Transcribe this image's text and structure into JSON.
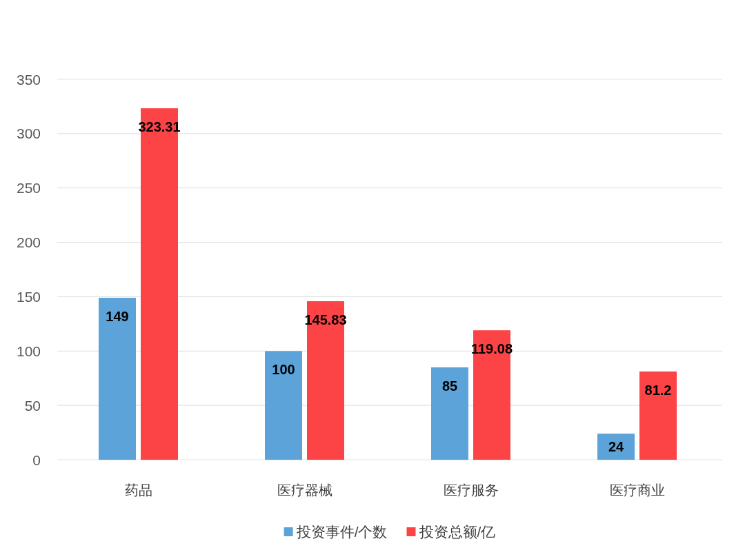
{
  "chart_data": {
    "type": "bar",
    "categories": [
      "药品",
      "医疗器械",
      "医疗服务",
      "医疗商业"
    ],
    "series": [
      {
        "name": "投资事件/个数",
        "color": "#5ba3d9",
        "values": [
          149,
          100,
          85,
          24
        ]
      },
      {
        "name": "投资总额/亿",
        "color": "#fc4447",
        "values": [
          323.31,
          145.83,
          119.08,
          81.2
        ]
      }
    ],
    "ylim": [
      0,
      350
    ],
    "yticks": [
      0,
      50,
      100,
      150,
      200,
      250,
      300,
      350
    ],
    "grid": "y",
    "legend": "bottom",
    "data_labels": true
  }
}
